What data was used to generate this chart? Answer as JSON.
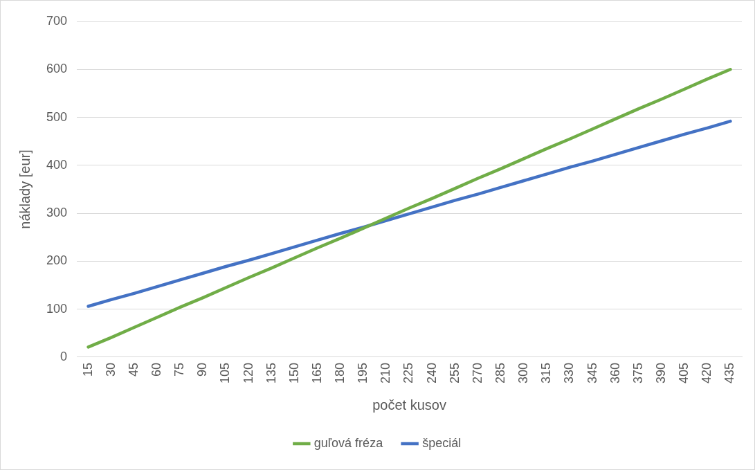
{
  "chart_data": {
    "type": "line",
    "xlabel": "počet kusov",
    "ylabel": "náklady [eur]",
    "categories": [
      "15",
      "30",
      "45",
      "60",
      "75",
      "90",
      "105",
      "120",
      "135",
      "150",
      "165",
      "180",
      "195",
      "210",
      "225",
      "240",
      "255",
      "270",
      "285",
      "300",
      "315",
      "330",
      "345",
      "360",
      "375",
      "390",
      "405",
      "420",
      "435"
    ],
    "series": [
      {
        "name": "guľová fréza",
        "color": "#70ad47",
        "values": [
          21,
          41,
          62,
          83,
          104,
          124,
          145,
          166,
          186,
          207,
          228,
          248,
          269,
          290,
          311,
          331,
          352,
          373,
          393,
          414,
          435,
          455,
          476,
          497,
          518,
          538,
          559,
          580,
          600
        ]
      },
      {
        "name": "špeciál",
        "color": "#4472c4",
        "values": [
          106,
          120,
          133,
          147,
          161,
          175,
          189,
          202,
          216,
          230,
          244,
          258,
          271,
          285,
          299,
          313,
          327,
          340,
          354,
          368,
          382,
          396,
          409,
          423,
          437,
          451,
          465,
          478,
          492
        ]
      }
    ],
    "ylim": [
      0,
      700
    ],
    "yticks": [
      0,
      100,
      200,
      300,
      400,
      500,
      600,
      700
    ],
    "grid": "y",
    "legend": "bottom",
    "marker": "none",
    "line_style": "solid"
  }
}
